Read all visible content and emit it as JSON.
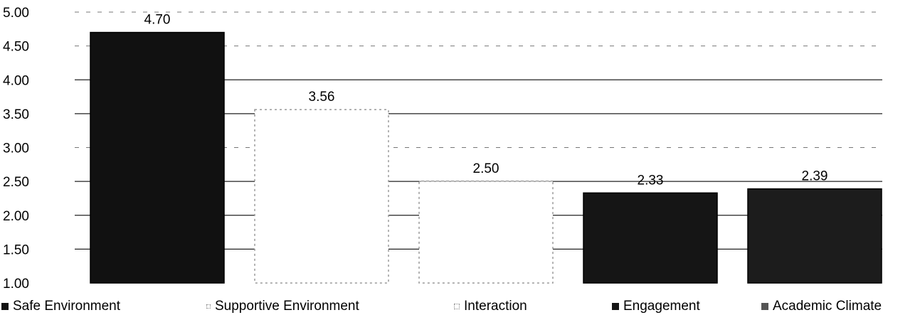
{
  "chart_data": {
    "type": "bar",
    "categories": [
      "Safe Environment",
      "Supportive Environment",
      "Interaction",
      "Engagement",
      "Academic Climate"
    ],
    "values": [
      4.7,
      3.56,
      2.5,
      2.33,
      2.39
    ],
    "data_labels": [
      "4.70",
      "3.56",
      "2.50",
      "2.33",
      "2.39"
    ],
    "yticks": [
      "1.00",
      "1.50",
      "2.00",
      "2.50",
      "3.00",
      "3.50",
      "4.00",
      "4.50",
      "5.00"
    ],
    "ylim": [
      1.0,
      5.0
    ],
    "grid": true,
    "legend_position": "bottom",
    "colors": [
      "#111111",
      "#ffffff",
      "#ffffff",
      "#151515",
      "#1c1c1c"
    ],
    "legend": [
      {
        "label": "Safe Environment",
        "color": "#111111"
      },
      {
        "label": "Supportive Environment",
        "color": "#ffffff"
      },
      {
        "label": "Interaction",
        "color": "#ffffff"
      },
      {
        "label": "Engagement",
        "color": "#151515"
      },
      {
        "label": "Academic Climate",
        "color": "#1c1c1c"
      }
    ]
  }
}
